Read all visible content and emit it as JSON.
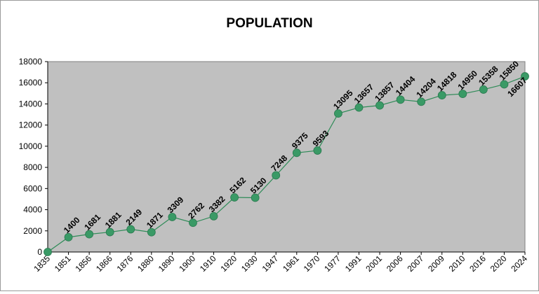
{
  "chart_data": {
    "type": "line",
    "title": "POPULATION",
    "xlabel": "",
    "ylabel": "",
    "ylim": [
      0,
      18000
    ],
    "yticks": [
      0,
      2000,
      4000,
      6000,
      8000,
      10000,
      12000,
      14000,
      16000,
      18000
    ],
    "grid": false,
    "legend": "none",
    "plot_background": "#c0c0c0",
    "series_color": "#2e8b57",
    "marker_color": "#3a9a66",
    "categories": [
      "1835",
      "1851",
      "1856",
      "1866",
      "1876",
      "1880",
      "1890",
      "1900",
      "1910",
      "1920",
      "1930",
      "1947",
      "1961",
      "1970",
      "1977",
      "1991",
      "2001",
      "2006",
      "2007",
      "2009",
      "2010",
      "2016",
      "2020",
      "2024"
    ],
    "values": [
      0,
      1400,
      1681,
      1881,
      2149,
      1871,
      3309,
      2762,
      3382,
      5162,
      5130,
      7248,
      9375,
      9593,
      13095,
      13657,
      13857,
      14404,
      14204,
      14818,
      14950,
      15358,
      15850,
      16607
    ],
    "data_labels": [
      "",
      "1400",
      "1681",
      "1881",
      "2149",
      "1871",
      "3309",
      "2762",
      "3382",
      "5162",
      "5130",
      "7248",
      "9375",
      "9593",
      "13095",
      "13657",
      "13857",
      "14404",
      "14204",
      "14818",
      "14950",
      "15358",
      "15850",
      "16607"
    ]
  }
}
